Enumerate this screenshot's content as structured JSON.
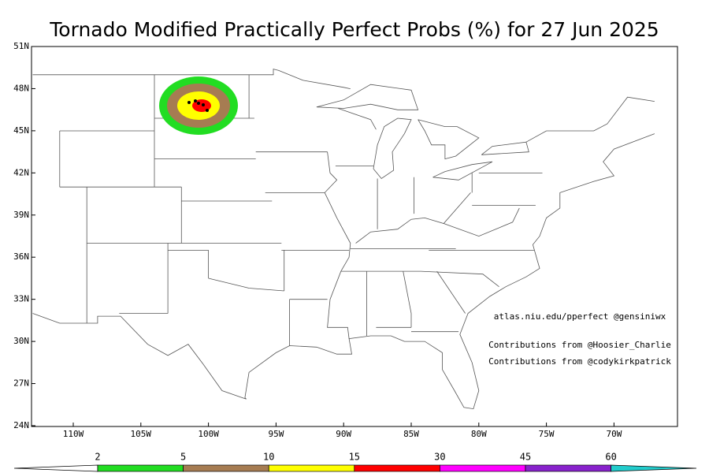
{
  "header": {
    "title": "Tornado Modified Practically Perfect Probs (%) for 27 Jun 2025"
  },
  "map": {
    "lat_labels": [
      "51N",
      "48N",
      "45N",
      "42N",
      "39N",
      "36N",
      "33N",
      "30N",
      "27N",
      "24N"
    ],
    "lon_labels": [
      "110W",
      "105W",
      "100W",
      "95W",
      "90W",
      "85W",
      "80W",
      "75W",
      "70W"
    ],
    "credits": [
      "atlas.niu.edu/pperfect @gensiniwx",
      "Contributions from @Hoosier_Charlie",
      "Contributions from @codykirkpatrick"
    ]
  },
  "colorbar": {
    "levels": [
      2,
      5,
      10,
      15,
      30,
      45,
      60
    ],
    "colors": [
      "#ffffff",
      "#22dd22",
      "#a67c52",
      "#ffff00",
      "#ff0000",
      "#ff00ff",
      "#8822cc",
      "#22cccc"
    ]
  }
}
